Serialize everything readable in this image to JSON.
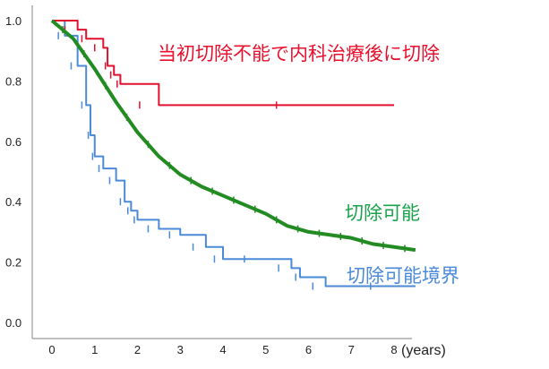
{
  "chart_data": {
    "type": "line",
    "subtype": "kaplan-meier",
    "title": "",
    "xlabel": "(years)",
    "ylabel": "",
    "xlim": [
      0,
      8
    ],
    "ylim": [
      0.0,
      1.0
    ],
    "x_ticks": [
      "0",
      "1",
      "2",
      "3",
      "4",
      "5",
      "6",
      "7",
      "8"
    ],
    "y_ticks": [
      "0.0",
      "0.2",
      "0.4",
      "0.6",
      "0.8",
      "1.0"
    ],
    "grid": false,
    "series": [
      {
        "name": "当初切除不能で内科治療後に切除",
        "color": "#e0102f",
        "x": [
          0,
          0.6,
          0.8,
          1.2,
          1.3,
          1.45,
          1.6,
          2.5,
          8.0
        ],
        "y": [
          1.0,
          0.97,
          0.94,
          0.91,
          0.85,
          0.82,
          0.79,
          0.72,
          0.72
        ]
      },
      {
        "name": "切除可能",
        "color": "#228b22",
        "x": [
          0,
          0.5,
          1.0,
          1.5,
          2.0,
          2.5,
          3.0,
          3.5,
          4.0,
          4.5,
          5.0,
          5.5,
          6.0,
          6.5,
          7.0,
          7.5,
          8.0,
          8.5
        ],
        "y": [
          1.0,
          0.94,
          0.84,
          0.73,
          0.63,
          0.55,
          0.49,
          0.45,
          0.42,
          0.39,
          0.36,
          0.32,
          0.3,
          0.29,
          0.28,
          0.26,
          0.25,
          0.24
        ]
      },
      {
        "name": "切除可能境界",
        "color": "#4a8ad8",
        "x": [
          0,
          0.3,
          0.6,
          0.8,
          0.9,
          1.0,
          1.2,
          1.5,
          1.7,
          1.85,
          2.0,
          2.5,
          3.0,
          3.6,
          4.0,
          5.0,
          5.6,
          5.8,
          6.4,
          8.5
        ],
        "y": [
          1.0,
          0.95,
          0.85,
          0.72,
          0.62,
          0.55,
          0.51,
          0.47,
          0.4,
          0.37,
          0.34,
          0.31,
          0.29,
          0.25,
          0.21,
          0.21,
          0.18,
          0.15,
          0.12,
          0.12
        ]
      }
    ],
    "annotations": [
      {
        "text": "当初切除不能で内科治療後に切除",
        "color": "#e0102f"
      },
      {
        "text": "切除可能",
        "color": "#1aa34a"
      },
      {
        "text": "切除可能境界",
        "color": "#4a8ad8"
      }
    ],
    "legend": "inline labels next to curves"
  },
  "labels": {
    "red": "当初切除不能で内科治療後に切除",
    "green": "切除可能",
    "blue": "切除可能境界",
    "x_unit": "(years)"
  }
}
